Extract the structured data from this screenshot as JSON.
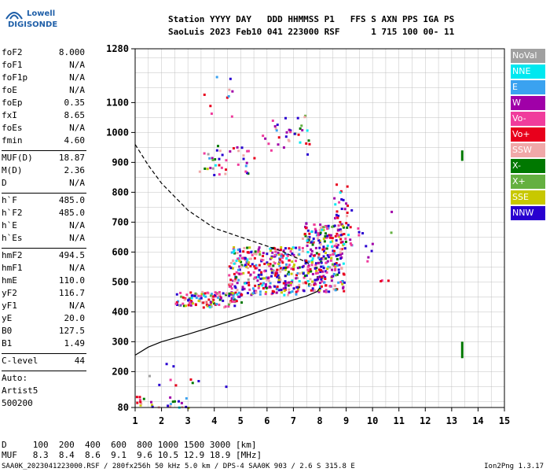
{
  "logo": {
    "line1": "Lowell",
    "line2": "DIGISONDE"
  },
  "header": {
    "line1": "Station YYYY DAY   DDD HHMMSS P1   FFS S AXN PPS IGA PS",
    "line2": "SaoLuis 2023 Feb10 041 223000 RSF      1 715 100 00- 11"
  },
  "params_group1": [
    {
      "k": "foF2",
      "v": "8.000"
    },
    {
      "k": "foF1",
      "v": "N/A"
    },
    {
      "k": "foF1p",
      "v": "N/A"
    },
    {
      "k": "foE",
      "v": "N/A"
    },
    {
      "k": "foEp",
      "v": "0.35"
    },
    {
      "k": "fxI",
      "v": "8.65"
    },
    {
      "k": "foEs",
      "v": "N/A"
    },
    {
      "k": "fmin",
      "v": "4.60"
    }
  ],
  "params_group2": [
    {
      "k": "MUF(D)",
      "v": "18.87"
    },
    {
      "k": "M(D)",
      "v": "2.36"
    },
    {
      "k": "D",
      "v": "N/A"
    }
  ],
  "params_group3": [
    {
      "k": "h`F",
      "v": "485.0"
    },
    {
      "k": "h`F2",
      "v": "485.0"
    },
    {
      "k": "h`E",
      "v": "N/A"
    },
    {
      "k": "h`Es",
      "v": "N/A"
    }
  ],
  "params_group4": [
    {
      "k": "hmF2",
      "v": "494.5"
    },
    {
      "k": "hmF1",
      "v": "N/A"
    },
    {
      "k": "hmE",
      "v": "110.0"
    },
    {
      "k": "yF2",
      "v": "116.7"
    },
    {
      "k": "yF1",
      "v": "N/A"
    },
    {
      "k": "yE",
      "v": "20.0"
    },
    {
      "k": "B0",
      "v": "127.5"
    },
    {
      "k": "B1",
      "v": "1.49"
    }
  ],
  "params_group5": [
    {
      "k": "C-level",
      "v": "44"
    }
  ],
  "auto": {
    "line1": "Auto:",
    "line2": "Artist5",
    "line3": "500200"
  },
  "legend": [
    {
      "label": "NoVal",
      "color": "#a0a0a0"
    },
    {
      "label": "NNE",
      "color": "#00e8f0"
    },
    {
      "label": "E",
      "color": "#3aa2f0"
    },
    {
      "label": "W",
      "color": "#a000a8"
    },
    {
      "label": "Vo-",
      "color": "#f03c9c"
    },
    {
      "label": "Vo+",
      "color": "#e8001c"
    },
    {
      "label": "SSW",
      "color": "#f0a8a8"
    },
    {
      "label": "X-",
      "color": "#007800"
    },
    {
      "label": "X+",
      "color": "#64b040"
    },
    {
      "label": "SSE",
      "color": "#c8c800"
    },
    {
      "label": "NNW",
      "color": "#2800d0"
    }
  ],
  "bottom": {
    "line1": "D     100  200  400  600  800 1000 1500 3000 [km]",
    "line2": "MUF   8.3  8.4  8.6  9.1  9.6 10.5 12.9 18.9 [MHz]"
  },
  "footer": {
    "left": "SAA0K_2023041223000.RSF / 280fx256h 50 kHz 5.0 km / DPS-4 SAA0K 903 / 2.6 S 315.8 E",
    "right": "Ion2Png 1.3.17"
  },
  "chart_data": {
    "type": "scatter",
    "xlim": [
      1,
      15
    ],
    "ylim": [
      80,
      1280
    ],
    "x_ticks": [
      1,
      2,
      3,
      4,
      5,
      6,
      7,
      8,
      9,
      10,
      11,
      12,
      13,
      14,
      15
    ],
    "y_ticks": [
      80,
      200,
      300,
      400,
      500,
      600,
      700,
      800,
      900,
      1000,
      1100,
      1280
    ],
    "x_tick_labels": [
      "1",
      "2",
      "3",
      "4",
      "5",
      "6",
      "7",
      "8",
      "9",
      "10",
      "11",
      "12",
      "13",
      "14",
      "15"
    ],
    "y_tick_labels": [
      "80",
      "200",
      "300",
      "400",
      "500",
      "600",
      "700",
      "800",
      "900",
      "1000",
      "1100",
      "1280"
    ],
    "grid": true,
    "profile_curve": [
      [
        1.0,
        255
      ],
      [
        1.5,
        282
      ],
      [
        2.0,
        300
      ],
      [
        3.0,
        325
      ],
      [
        4.0,
        352
      ],
      [
        5.0,
        380
      ],
      [
        6.0,
        410
      ],
      [
        7.0,
        440
      ],
      [
        7.5,
        453
      ],
      [
        7.9,
        468
      ],
      [
        8.0,
        480
      ]
    ],
    "trace_dashed": [
      [
        1.0,
        960
      ],
      [
        1.5,
        890
      ],
      [
        2.0,
        830
      ],
      [
        3.0,
        740
      ],
      [
        4.0,
        680
      ],
      [
        5.0,
        650
      ],
      [
        6.0,
        620
      ],
      [
        6.5,
        605
      ],
      [
        7.0,
        585
      ],
      [
        7.4,
        570
      ],
      [
        7.6,
        560
      ]
    ],
    "echo_clusters": [
      {
        "xmin": 2.5,
        "xmax": 5.0,
        "ymin": 415,
        "ymax": 470,
        "n": 120
      },
      {
        "xmin": 4.5,
        "xmax": 7.2,
        "ymin": 460,
        "ymax": 620,
        "n": 350
      },
      {
        "xmin": 7.3,
        "xmax": 8.9,
        "ymin": 470,
        "ymax": 700,
        "n": 300
      },
      {
        "xmin": 8.5,
        "xmax": 9.2,
        "ymin": 600,
        "ymax": 830,
        "n": 40
      },
      {
        "xmin": 3.4,
        "xmax": 5.5,
        "ymin": 860,
        "ymax": 960,
        "n": 40
      },
      {
        "xmin": 5.8,
        "xmax": 7.6,
        "ymin": 930,
        "ymax": 1060,
        "n": 35
      },
      {
        "xmin": 1.0,
        "xmax": 3.0,
        "ymin": 80,
        "ymax": 120,
        "n": 25
      },
      {
        "xmin": 1.5,
        "xmax": 4.5,
        "ymin": 140,
        "ymax": 230,
        "n": 10
      },
      {
        "xmin": 3.5,
        "xmax": 4.7,
        "ymin": 1040,
        "ymax": 1200,
        "n": 10
      },
      {
        "xmin": 9.4,
        "xmax": 10.8,
        "ymin": 480,
        "ymax": 760,
        "n": 14
      }
    ],
    "markers": [
      {
        "x": 13.4,
        "y1": 905,
        "y2": 940,
        "color": "#007800"
      },
      {
        "x": 13.4,
        "y1": 245,
        "y2": 300,
        "color": "#007800"
      }
    ]
  }
}
